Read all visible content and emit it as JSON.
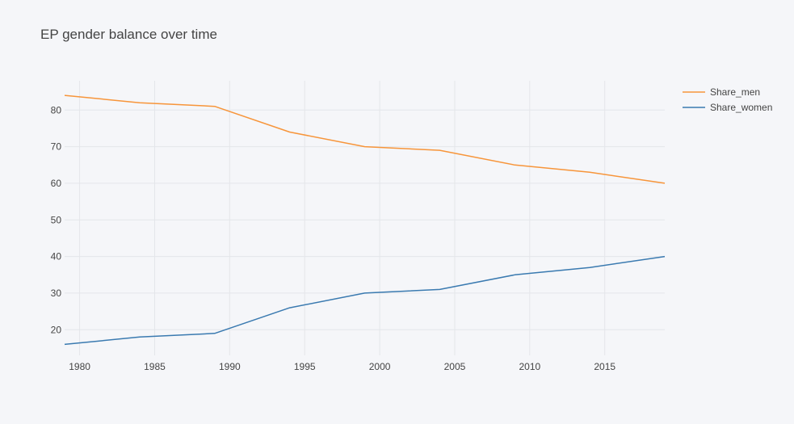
{
  "chart_data": {
    "type": "line",
    "title": "EP gender balance over time",
    "xlabel": "",
    "ylabel": "",
    "x": [
      1979,
      1984,
      1989,
      1994,
      1999,
      2004,
      2009,
      2014,
      2019
    ],
    "series": [
      {
        "name": "Share_men",
        "color": "#f7953a",
        "values": [
          84,
          82,
          81,
          74,
          70,
          69,
          65,
          63,
          60
        ]
      },
      {
        "name": "Share_women",
        "color": "#3a7ab0",
        "values": [
          16,
          18,
          19,
          26,
          30,
          31,
          35,
          37,
          40
        ]
      }
    ],
    "xlim": [
      1979,
      2019
    ],
    "ylim": [
      13,
      88
    ],
    "xticks": [
      1980,
      1985,
      1990,
      1995,
      2000,
      2005,
      2010,
      2015
    ],
    "yticks": [
      20,
      30,
      40,
      50,
      60,
      70,
      80
    ],
    "grid": true,
    "legend": "top-right"
  },
  "colors": {
    "background": "#f5f6f9",
    "grid": "#e4e6ea"
  }
}
